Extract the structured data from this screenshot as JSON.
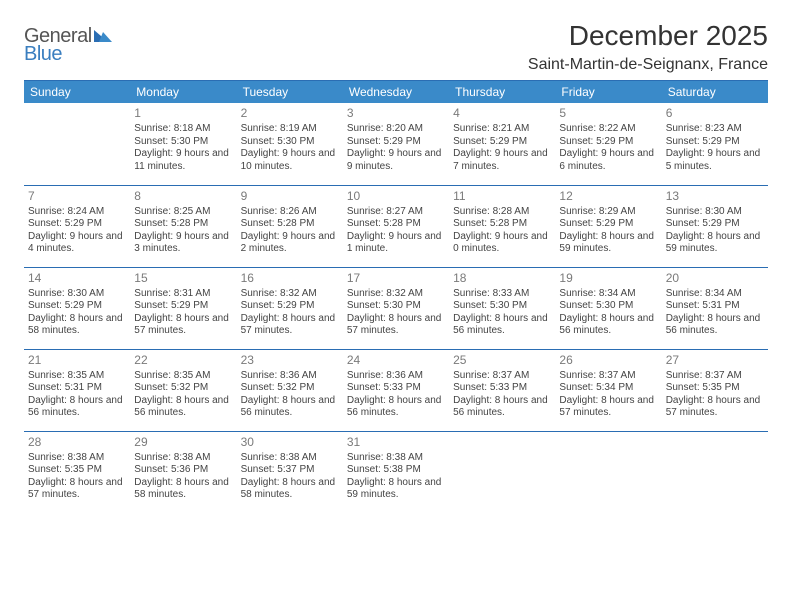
{
  "logo": {
    "line1": "General",
    "line2": "Blue"
  },
  "title": "December 2025",
  "location": "Saint-Martin-de-Seignanx, France",
  "header_bg": "#3a8ac9",
  "rule_color": "#2a6db3",
  "text_color": "#444444",
  "daynum_color": "#7a7a7a",
  "weekdays": [
    "Sunday",
    "Monday",
    "Tuesday",
    "Wednesday",
    "Thursday",
    "Friday",
    "Saturday"
  ],
  "weeks": [
    [
      null,
      {
        "n": "1",
        "sr": "Sunrise: 8:18 AM",
        "ss": "Sunset: 5:30 PM",
        "dl": "Daylight: 9 hours and 11 minutes."
      },
      {
        "n": "2",
        "sr": "Sunrise: 8:19 AM",
        "ss": "Sunset: 5:30 PM",
        "dl": "Daylight: 9 hours and 10 minutes."
      },
      {
        "n": "3",
        "sr": "Sunrise: 8:20 AM",
        "ss": "Sunset: 5:29 PM",
        "dl": "Daylight: 9 hours and 9 minutes."
      },
      {
        "n": "4",
        "sr": "Sunrise: 8:21 AM",
        "ss": "Sunset: 5:29 PM",
        "dl": "Daylight: 9 hours and 7 minutes."
      },
      {
        "n": "5",
        "sr": "Sunrise: 8:22 AM",
        "ss": "Sunset: 5:29 PM",
        "dl": "Daylight: 9 hours and 6 minutes."
      },
      {
        "n": "6",
        "sr": "Sunrise: 8:23 AM",
        "ss": "Sunset: 5:29 PM",
        "dl": "Daylight: 9 hours and 5 minutes."
      }
    ],
    [
      {
        "n": "7",
        "sr": "Sunrise: 8:24 AM",
        "ss": "Sunset: 5:29 PM",
        "dl": "Daylight: 9 hours and 4 minutes."
      },
      {
        "n": "8",
        "sr": "Sunrise: 8:25 AM",
        "ss": "Sunset: 5:28 PM",
        "dl": "Daylight: 9 hours and 3 minutes."
      },
      {
        "n": "9",
        "sr": "Sunrise: 8:26 AM",
        "ss": "Sunset: 5:28 PM",
        "dl": "Daylight: 9 hours and 2 minutes."
      },
      {
        "n": "10",
        "sr": "Sunrise: 8:27 AM",
        "ss": "Sunset: 5:28 PM",
        "dl": "Daylight: 9 hours and 1 minute."
      },
      {
        "n": "11",
        "sr": "Sunrise: 8:28 AM",
        "ss": "Sunset: 5:28 PM",
        "dl": "Daylight: 9 hours and 0 minutes."
      },
      {
        "n": "12",
        "sr": "Sunrise: 8:29 AM",
        "ss": "Sunset: 5:29 PM",
        "dl": "Daylight: 8 hours and 59 minutes."
      },
      {
        "n": "13",
        "sr": "Sunrise: 8:30 AM",
        "ss": "Sunset: 5:29 PM",
        "dl": "Daylight: 8 hours and 59 minutes."
      }
    ],
    [
      {
        "n": "14",
        "sr": "Sunrise: 8:30 AM",
        "ss": "Sunset: 5:29 PM",
        "dl": "Daylight: 8 hours and 58 minutes."
      },
      {
        "n": "15",
        "sr": "Sunrise: 8:31 AM",
        "ss": "Sunset: 5:29 PM",
        "dl": "Daylight: 8 hours and 57 minutes."
      },
      {
        "n": "16",
        "sr": "Sunrise: 8:32 AM",
        "ss": "Sunset: 5:29 PM",
        "dl": "Daylight: 8 hours and 57 minutes."
      },
      {
        "n": "17",
        "sr": "Sunrise: 8:32 AM",
        "ss": "Sunset: 5:30 PM",
        "dl": "Daylight: 8 hours and 57 minutes."
      },
      {
        "n": "18",
        "sr": "Sunrise: 8:33 AM",
        "ss": "Sunset: 5:30 PM",
        "dl": "Daylight: 8 hours and 56 minutes."
      },
      {
        "n": "19",
        "sr": "Sunrise: 8:34 AM",
        "ss": "Sunset: 5:30 PM",
        "dl": "Daylight: 8 hours and 56 minutes."
      },
      {
        "n": "20",
        "sr": "Sunrise: 8:34 AM",
        "ss": "Sunset: 5:31 PM",
        "dl": "Daylight: 8 hours and 56 minutes."
      }
    ],
    [
      {
        "n": "21",
        "sr": "Sunrise: 8:35 AM",
        "ss": "Sunset: 5:31 PM",
        "dl": "Daylight: 8 hours and 56 minutes."
      },
      {
        "n": "22",
        "sr": "Sunrise: 8:35 AM",
        "ss": "Sunset: 5:32 PM",
        "dl": "Daylight: 8 hours and 56 minutes."
      },
      {
        "n": "23",
        "sr": "Sunrise: 8:36 AM",
        "ss": "Sunset: 5:32 PM",
        "dl": "Daylight: 8 hours and 56 minutes."
      },
      {
        "n": "24",
        "sr": "Sunrise: 8:36 AM",
        "ss": "Sunset: 5:33 PM",
        "dl": "Daylight: 8 hours and 56 minutes."
      },
      {
        "n": "25",
        "sr": "Sunrise: 8:37 AM",
        "ss": "Sunset: 5:33 PM",
        "dl": "Daylight: 8 hours and 56 minutes."
      },
      {
        "n": "26",
        "sr": "Sunrise: 8:37 AM",
        "ss": "Sunset: 5:34 PM",
        "dl": "Daylight: 8 hours and 57 minutes."
      },
      {
        "n": "27",
        "sr": "Sunrise: 8:37 AM",
        "ss": "Sunset: 5:35 PM",
        "dl": "Daylight: 8 hours and 57 minutes."
      }
    ],
    [
      {
        "n": "28",
        "sr": "Sunrise: 8:38 AM",
        "ss": "Sunset: 5:35 PM",
        "dl": "Daylight: 8 hours and 57 minutes."
      },
      {
        "n": "29",
        "sr": "Sunrise: 8:38 AM",
        "ss": "Sunset: 5:36 PM",
        "dl": "Daylight: 8 hours and 58 minutes."
      },
      {
        "n": "30",
        "sr": "Sunrise: 8:38 AM",
        "ss": "Sunset: 5:37 PM",
        "dl": "Daylight: 8 hours and 58 minutes."
      },
      {
        "n": "31",
        "sr": "Sunrise: 8:38 AM",
        "ss": "Sunset: 5:38 PM",
        "dl": "Daylight: 8 hours and 59 minutes."
      },
      null,
      null,
      null
    ]
  ]
}
